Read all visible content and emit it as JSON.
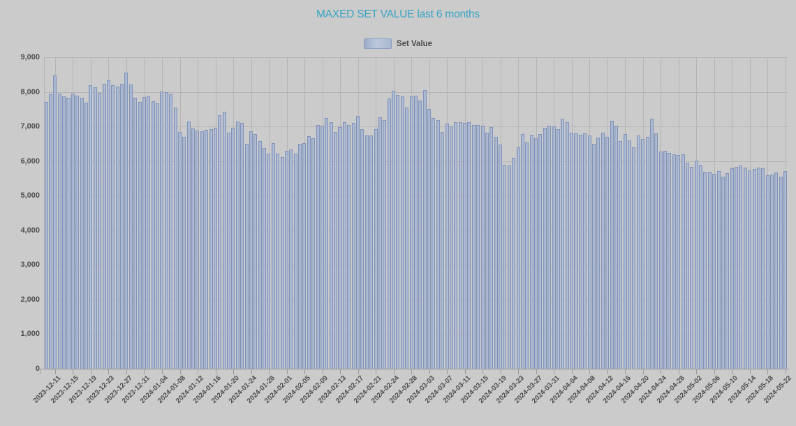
{
  "title": "MAXED SET VALUE last 6 months",
  "legend": {
    "label": "Set Value"
  },
  "chart_data": {
    "type": "bar",
    "title": "MAXED SET VALUE last 6 months",
    "series": [
      {
        "name": "Set Value",
        "values": [
          7700,
          7930,
          8470,
          7950,
          7880,
          7830,
          7960,
          7900,
          7820,
          7680,
          8200,
          8130,
          7970,
          8240,
          8330,
          8200,
          8150,
          8230,
          8560,
          8210,
          7830,
          7700,
          7840,
          7870,
          7720,
          7670,
          8020,
          7990,
          7930,
          7550,
          6850,
          6690,
          7150,
          6950,
          6890,
          6870,
          6900,
          6920,
          6970,
          7330,
          7430,
          6830,
          6970,
          7140,
          7110,
          6490,
          6870,
          6790,
          6570,
          6370,
          6220,
          6510,
          6220,
          6120,
          6300,
          6330,
          6220,
          6490,
          6520,
          6710,
          6650,
          7040,
          7020,
          7250,
          7130,
          6850,
          6990,
          7130,
          7050,
          7110,
          7310,
          6930,
          6730,
          6730,
          6930,
          7270,
          7190,
          7810,
          8040,
          7920,
          7870,
          7540,
          7880,
          7890,
          7750,
          8050,
          7500,
          7250,
          7190,
          6840,
          7090,
          7010,
          7130,
          7120,
          7110,
          7130,
          7040,
          7040,
          7020,
          6830,
          6990,
          6690,
          6470,
          5890,
          5870,
          6100,
          6400,
          6790,
          6540,
          6770,
          6650,
          6780,
          6970,
          7020,
          7000,
          6920,
          7230,
          7130,
          6830,
          6800,
          6770,
          6800,
          6730,
          6500,
          6670,
          6820,
          6700,
          7170,
          7030,
          6570,
          6790,
          6590,
          6400,
          6750,
          6630,
          6700,
          7220,
          6800,
          6270,
          6300,
          6230,
          6200,
          6170,
          6190,
          5950,
          5830,
          6020,
          5900,
          5700,
          5690,
          5630,
          5720,
          5540,
          5650,
          5800,
          5830,
          5870,
          5820,
          5730,
          5770,
          5820,
          5790,
          5590,
          5600,
          5670,
          5550,
          5720
        ]
      }
    ],
    "ylim": [
      0,
      9000
    ],
    "y_tick_interval": 1000,
    "y_tick_labels": [
      "0",
      "1,000",
      "2,000",
      "3,000",
      "4,000",
      "5,000",
      "6,000",
      "7,000",
      "8,000",
      "9,000"
    ],
    "x_tick_labels": [
      "2023-12-11",
      "2023-12-15",
      "2023-12-19",
      "2023-12-23",
      "2023-12-27",
      "2023-12-31",
      "2024-01-04",
      "2024-01-08",
      "2024-01-12",
      "2024-01-16",
      "2024-01-20",
      "2024-01-24",
      "2024-01-28",
      "2024-02-01",
      "2024-02-05",
      "2024-02-09",
      "2024-02-13",
      "2024-02-17",
      "2024-02-21",
      "2024-02-24",
      "2024-02-28",
      "2024-03-03",
      "2024-03-07",
      "2024-03-11",
      "2024-03-15",
      "2024-03-19",
      "2024-03-23",
      "2024-03-27",
      "2024-03-31",
      "2024-04-04",
      "2024-04-08",
      "2024-04-12",
      "2024-04-16",
      "2024-04-20",
      "2024-04-24",
      "2024-04-28",
      "2024-05-02",
      "2024-05-06",
      "2024-05-10",
      "2024-05-14",
      "2024-05-18",
      "2024-05-22"
    ],
    "x_label_every": 4,
    "first_labeled_bar_index": 2,
    "grid": true,
    "legend_position": "top",
    "colors": {
      "background": "#cbcbcb",
      "title": "#38a3c3",
      "bar_fill": "#aab7cf",
      "bar_border": "#8193b9",
      "gridline": "#b5b5b5",
      "axis": "#9a9a9a",
      "axis_label": "#4f4f4f"
    }
  }
}
